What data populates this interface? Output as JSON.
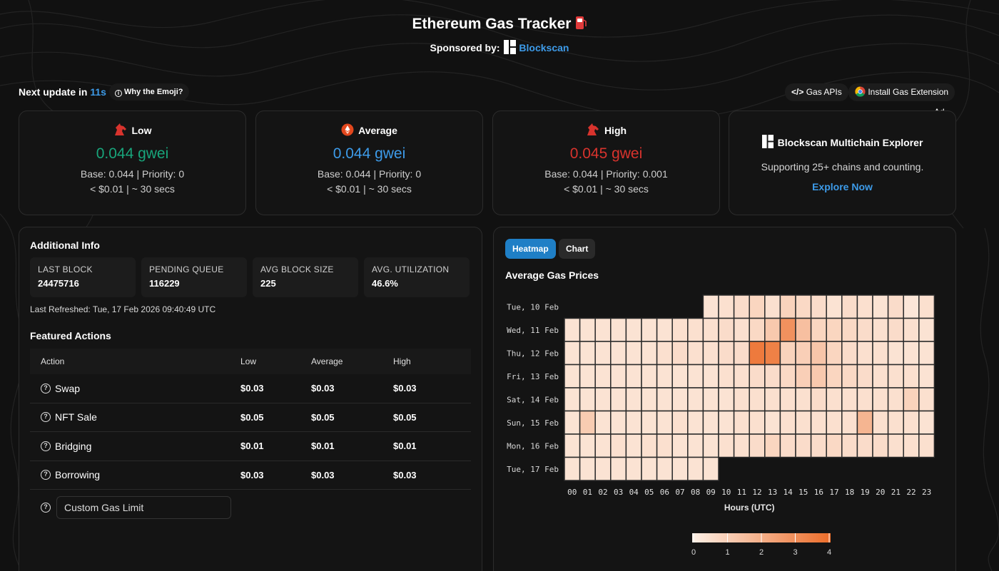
{
  "header": {
    "title": "Ethereum Gas Tracker",
    "sponsor_label": "Sponsored by:",
    "sponsor_name": "Blockscan"
  },
  "update": {
    "prefix": "Next update in",
    "seconds": "11s",
    "why_emoji": "Why the Emoji?"
  },
  "top_buttons": {
    "gas_apis": "Gas APIs",
    "install_extension": "Install Gas Extension",
    "ad_label": "Ad"
  },
  "gas_cards": {
    "low": {
      "label": "Low",
      "price": "0.044 gwei",
      "base_priority": "Base: 0.044 | Priority: 0",
      "cost_time": "< $0.01 | ~ 30 secs"
    },
    "average": {
      "label": "Average",
      "price": "0.044 gwei",
      "base_priority": "Base: 0.044 | Priority: 0",
      "cost_time": "< $0.01 | ~ 30 secs"
    },
    "high": {
      "label": "High",
      "price": "0.045 gwei",
      "base_priority": "Base: 0.044 | Priority: 0.001",
      "cost_time": "< $0.01 | ~ 30 secs"
    }
  },
  "ad": {
    "title": "Blockscan Multichain Explorer",
    "description": "Supporting 25+ chains and counting.",
    "link": "Explore Now"
  },
  "additional_info": {
    "title": "Additional Info",
    "stats": [
      {
        "label": "LAST BLOCK",
        "value": "24475716"
      },
      {
        "label": "PENDING QUEUE",
        "value": "116229"
      },
      {
        "label": "AVG BLOCK SIZE",
        "value": "225"
      },
      {
        "label": "AVG. UTILIZATION",
        "value": "46.6%"
      }
    ],
    "last_refreshed": "Last Refreshed: Tue, 17 Feb 2026 09:40:49 UTC"
  },
  "featured_actions": {
    "title": "Featured Actions",
    "headers": [
      "Action",
      "Low",
      "Average",
      "High"
    ],
    "rows": [
      {
        "action": "Swap",
        "low": "$0.03",
        "average": "$0.03",
        "high": "$0.03"
      },
      {
        "action": "NFT Sale",
        "low": "$0.05",
        "average": "$0.05",
        "high": "$0.05"
      },
      {
        "action": "Bridging",
        "low": "$0.01",
        "average": "$0.01",
        "high": "$0.01"
      },
      {
        "action": "Borrowing",
        "low": "$0.03",
        "average": "$0.03",
        "high": "$0.03"
      }
    ],
    "custom_placeholder": "Custom Gas Limit"
  },
  "tabs": {
    "heatmap": "Heatmap",
    "chart": "Chart"
  },
  "colors": {
    "accent": "#1f7fc6",
    "low": "#18a57b",
    "average": "#3d9be9",
    "high": "#d8332d",
    "heat_min": "#fdf0e6",
    "heat_max": "#ec6d2a"
  },
  "chart_data": {
    "type": "heatmap",
    "title": "Average Gas Prices",
    "xlabel": "Hours (UTC)",
    "ylabel": "",
    "x": [
      "00",
      "01",
      "02",
      "03",
      "04",
      "05",
      "06",
      "07",
      "08",
      "09",
      "10",
      "11",
      "12",
      "13",
      "14",
      "15",
      "16",
      "17",
      "18",
      "19",
      "20",
      "21",
      "22",
      "23"
    ],
    "y": [
      "Tue, 10 Feb",
      "Wed, 11 Feb",
      "Thu, 12 Feb",
      "Fri, 13 Feb",
      "Sat, 14 Feb",
      "Sun, 15 Feb",
      "Mon, 16 Feb",
      "Tue, 17 Feb"
    ],
    "values": [
      [
        null,
        null,
        null,
        null,
        null,
        null,
        null,
        null,
        null,
        0.4,
        0.5,
        0.6,
        0.8,
        0.5,
        0.9,
        0.7,
        0.6,
        0.4,
        0.6,
        0.5,
        0.4,
        0.6,
        0.3,
        0.5
      ],
      [
        0.4,
        0.4,
        0.4,
        0.4,
        0.4,
        0.4,
        0.4,
        0.5,
        0.5,
        0.5,
        0.6,
        0.5,
        0.7,
        1.2,
        2.9,
        1.5,
        0.8,
        0.8,
        0.7,
        0.6,
        0.5,
        0.6,
        0.5,
        0.4
      ],
      [
        0.4,
        0.4,
        0.4,
        0.4,
        0.4,
        0.4,
        0.5,
        0.6,
        0.5,
        0.5,
        0.6,
        0.6,
        3.6,
        3.4,
        0.9,
        1.0,
        1.3,
        0.8,
        0.6,
        0.5,
        0.5,
        0.4,
        0.4,
        0.4
      ],
      [
        0.4,
        0.4,
        0.4,
        0.4,
        0.4,
        0.4,
        0.4,
        0.4,
        0.4,
        0.4,
        0.5,
        0.5,
        0.6,
        0.6,
        0.7,
        1.0,
        1.2,
        0.8,
        0.7,
        0.6,
        0.5,
        0.5,
        0.5,
        0.4
      ],
      [
        0.4,
        0.4,
        0.4,
        0.4,
        0.4,
        0.4,
        0.4,
        0.4,
        0.4,
        0.4,
        0.4,
        0.5,
        0.5,
        0.5,
        0.5,
        0.5,
        0.6,
        0.5,
        0.5,
        0.5,
        0.5,
        0.5,
        0.9,
        0.5
      ],
      [
        0.4,
        1.1,
        0.4,
        0.4,
        0.4,
        0.4,
        0.4,
        0.5,
        0.4,
        0.4,
        0.4,
        0.5,
        0.5,
        0.4,
        0.5,
        0.5,
        0.5,
        0.5,
        0.5,
        1.8,
        0.5,
        0.5,
        0.5,
        0.4
      ],
      [
        0.4,
        0.4,
        0.4,
        0.5,
        0.4,
        0.5,
        0.5,
        0.4,
        0.4,
        0.4,
        0.5,
        0.5,
        0.6,
        0.8,
        0.6,
        0.6,
        0.6,
        0.7,
        0.6,
        0.6,
        0.6,
        0.5,
        0.5,
        0.5
      ],
      [
        0.4,
        0.4,
        0.4,
        0.4,
        0.4,
        0.4,
        0.4,
        0.4,
        0.4,
        0.4,
        null,
        null,
        null,
        null,
        null,
        null,
        null,
        null,
        null,
        null,
        null,
        null,
        null,
        null
      ]
    ],
    "scale_ticks": [
      "0",
      "1",
      "2",
      "3",
      "4"
    ],
    "scale_range": [
      0,
      4
    ]
  }
}
